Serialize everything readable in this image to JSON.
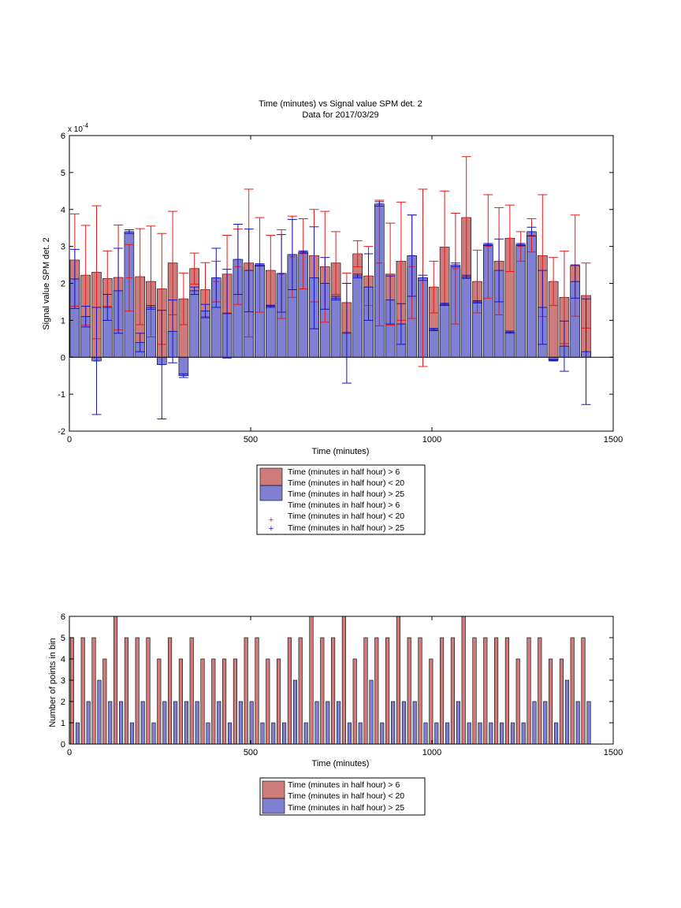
{
  "colors": {
    "red_bar": "#ce7b7b",
    "blue_bar": "#8080d2",
    "red_err": "#e41a1c",
    "blue_err": "#1414c8"
  },
  "chart_data": [
    {
      "type": "bar",
      "title": "Time (minutes) vs Signal value SPM det. 2",
      "subtitle": "Data for 2017/03/29",
      "xlabel": "Time (minutes)",
      "ylabel": "Signal value SPM det. 2",
      "y_exponent": "x 10",
      "y_exponent_power": "-4",
      "xlim": [
        0,
        1500
      ],
      "ylim": [
        -2,
        6
      ],
      "xticks": [
        "0",
        "500",
        "1000",
        "1500"
      ],
      "yticks": [
        "-2",
        "-1",
        "0",
        "1",
        "2",
        "3",
        "4",
        "5",
        "6"
      ],
      "grid": false,
      "legend_position": "bottom",
      "legend": [
        "Time (minutes in half hour) > 6\nTime (minutes in half hour) < 20",
        "Time (minutes in half hour) > 25",
        "Time (minutes in half hour) > 6\nTime (minutes in half hour) < 20",
        "Time (minutes in half hour) > 25"
      ],
      "series": [
        {
          "x": [
            15,
            45,
            75,
            105,
            135,
            165,
            195,
            225,
            255,
            285,
            315,
            345,
            375,
            405,
            435,
            465,
            495,
            525,
            555,
            585,
            615,
            645,
            675,
            705,
            735,
            765,
            795,
            825,
            855,
            885,
            915,
            945,
            975,
            1005,
            1035,
            1065,
            1095,
            1125,
            1155,
            1185,
            1215,
            1245,
            1275,
            1305,
            1335,
            1365,
            1395,
            1425
          ],
          "values": [
            2.63,
            2.22,
            2.3,
            2.13,
            2.16,
            2.15,
            2.18,
            2.05,
            1.85,
            2.55,
            1.58,
            2.4,
            1.83,
            2.05,
            2.25,
            2.45,
            2.55,
            2.5,
            2.35,
            2.25,
            2.72,
            2.8,
            2.75,
            2.45,
            2.55,
            1.48,
            2.8,
            2.2,
            2.55,
            2.25,
            2.6,
            2.45,
            2.15,
            1.9,
            2.98,
            2.4,
            3.78,
            2.05,
            3.0,
            2.6,
            3.22,
            3.0,
            3.3,
            2.75,
            2.05,
            1.62,
            2.48,
            1.67
          ],
          "errors": [
            1.25,
            1.35,
            1.8,
            0.75,
            1.42,
            0.9,
            1.3,
            1.5,
            1.5,
            1.4,
            0.7,
            0.42,
            0.73,
            0.55,
            1.05,
            1.02,
            2.0,
            1.28,
            0.95,
            1.2,
            1.1,
            0.95,
            1.25,
            1.5,
            0.85,
            0.8,
            0.35,
            0.8,
            1.7,
            1.38,
            1.6,
            1.4,
            2.4,
            0.7,
            1.52,
            1.5,
            1.65,
            0.85,
            1.4,
            1.45,
            0.9,
            0.4,
            0.45,
            1.65,
            0.65,
            1.25,
            1.37,
            0.88
          ]
        },
        {
          "x": [
            15,
            45,
            75,
            105,
            135,
            165,
            195,
            225,
            255,
            285,
            315,
            345,
            375,
            405,
            435,
            465,
            495,
            525,
            555,
            585,
            615,
            645,
            675,
            705,
            735,
            765,
            795,
            825,
            855,
            885,
            915,
            945,
            975,
            1005,
            1035,
            1065,
            1095,
            1125,
            1155,
            1185,
            1215,
            1245,
            1275,
            1305,
            1335,
            1365,
            1395,
            1425
          ],
          "values": [
            2.12,
            1.1,
            -0.1,
            1.35,
            1.8,
            3.4,
            0.4,
            1.35,
            -0.2,
            0.7,
            -0.5,
            1.8,
            1.25,
            2.15,
            1.18,
            2.65,
            2.35,
            2.5,
            1.38,
            2.27,
            2.78,
            2.85,
            2.15,
            2.0,
            1.6,
            0.65,
            2.2,
            1.9,
            4.15,
            1.55,
            0.9,
            2.75,
            2.15,
            0.75,
            1.43,
            2.5,
            2.18,
            1.5,
            3.05,
            2.35,
            0.68,
            3.05,
            3.4,
            1.35,
            -0.08,
            0.3,
            2.05,
            0.15
          ],
          "errors": [
            0.8,
            0.28,
            1.45,
            0.35,
            1.15,
            0.05,
            0.25,
            0.05,
            1.47,
            0.85,
            0.05,
            0.1,
            0.18,
            0.8,
            1.2,
            0.95,
            1.12,
            0.03,
            0.03,
            1.05,
            0.95,
            0.03,
            1.38,
            0.7,
            0.05,
            1.35,
            0.05,
            0.9,
            0.06,
            0.65,
            0.55,
            1.1,
            0.07,
            0.03,
            0.03,
            0.05,
            0.04,
            0.03,
            0.03,
            0.85,
            0.03,
            0.03,
            0.12,
            1.0,
            0.02,
            0.68,
            0.45,
            1.43
          ]
        }
      ]
    },
    {
      "type": "bar",
      "title": "",
      "xlabel": "Time (minutes)",
      "ylabel": "Number of points in bin",
      "xlim": [
        0,
        1500
      ],
      "ylim": [
        0,
        6
      ],
      "xticks": [
        "0",
        "500",
        "1000",
        "1500"
      ],
      "yticks": [
        "0",
        "1",
        "2",
        "3",
        "4",
        "5",
        "6"
      ],
      "grid": false,
      "legend_position": "bottom",
      "legend": [
        "Time (minutes in half hour) > 6\nTime (minutes in half hour) < 20",
        "Time (minutes in half hour) > 25"
      ],
      "series": [
        {
          "x": [
            15,
            45,
            75,
            105,
            135,
            165,
            195,
            225,
            255,
            285,
            315,
            345,
            375,
            405,
            435,
            465,
            495,
            525,
            555,
            585,
            615,
            645,
            675,
            705,
            735,
            765,
            795,
            825,
            855,
            885,
            915,
            945,
            975,
            1005,
            1035,
            1065,
            1095,
            1125,
            1155,
            1185,
            1215,
            1245,
            1275,
            1305,
            1335,
            1365,
            1395,
            1425
          ],
          "values": [
            5,
            5,
            5,
            4,
            6,
            5,
            5,
            5,
            4,
            5,
            4,
            5,
            4,
            4,
            4,
            4,
            5,
            5,
            4,
            4,
            5,
            5,
            6,
            5,
            5,
            6,
            4,
            5,
            5,
            5,
            6,
            5,
            5,
            4,
            5,
            5,
            6,
            5,
            5,
            5,
            5,
            4,
            5,
            5,
            4,
            4,
            5,
            5
          ]
        },
        {
          "x": [
            15,
            45,
            75,
            105,
            135,
            165,
            195,
            225,
            255,
            285,
            315,
            345,
            375,
            405,
            435,
            465,
            495,
            525,
            555,
            585,
            615,
            645,
            675,
            705,
            735,
            765,
            795,
            825,
            855,
            885,
            915,
            945,
            975,
            1005,
            1035,
            1065,
            1095,
            1125,
            1155,
            1185,
            1215,
            1245,
            1275,
            1305,
            1335,
            1365,
            1395,
            1425
          ],
          "values": [
            1,
            2,
            3,
            2,
            2,
            1,
            2,
            1,
            2,
            2,
            2,
            2,
            1,
            2,
            1,
            2,
            2,
            1,
            1,
            1,
            3,
            1,
            2,
            2,
            2,
            1,
            1,
            3,
            1,
            2,
            2,
            2,
            1,
            1,
            1,
            2,
            1,
            1,
            1,
            1,
            1,
            1,
            2,
            2,
            1,
            3,
            2,
            2
          ]
        }
      ]
    }
  ]
}
